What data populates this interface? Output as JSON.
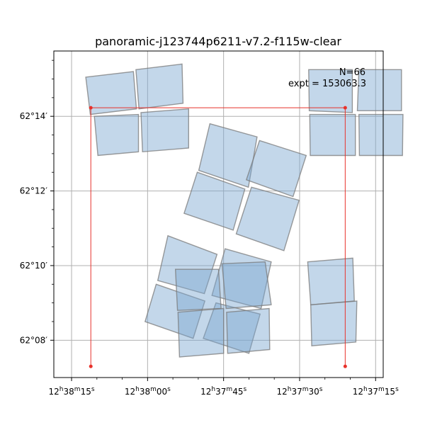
{
  "chart_data": {
    "type": "scatter",
    "title": "panoramic-j123744p6211-v7.2-f115w-clear",
    "annotations": {
      "n_text": "N=66",
      "expt_text": "expt = 153063.3"
    },
    "xaxis": {
      "unit": "RA_seconds_of_12h37m",
      "range": [
        78.5,
        13.5
      ],
      "ticks": [
        {
          "value": 75,
          "label_html": "12<tspan baseline-shift='super' font-size='9'>h</tspan>38<tspan baseline-shift='super' font-size='9'>m</tspan>15<tspan baseline-shift='super' font-size='9'>s</tspan>"
        },
        {
          "value": 60,
          "label_html": "12<tspan baseline-shift='super' font-size='9'>h</tspan>38<tspan baseline-shift='super' font-size='9'>m</tspan>00<tspan baseline-shift='super' font-size='9'>s</tspan>"
        },
        {
          "value": 45,
          "label_html": "12<tspan baseline-shift='super' font-size='9'>h</tspan>37<tspan baseline-shift='super' font-size='9'>m</tspan>45<tspan baseline-shift='super' font-size='9'>s</tspan>"
        },
        {
          "value": 30,
          "label_html": "12<tspan baseline-shift='super' font-size='9'>h</tspan>37<tspan baseline-shift='super' font-size='9'>m</tspan>30<tspan baseline-shift='super' font-size='9'>s</tspan>"
        },
        {
          "value": 15,
          "label_html": "12<tspan baseline-shift='super' font-size='9'>h</tspan>37<tspan baseline-shift='super' font-size='9'>m</tspan>15<tspan baseline-shift='super' font-size='9'>s</tspan>"
        }
      ],
      "minor_ticks": [
        70,
        65,
        55,
        50,
        40,
        35,
        25,
        20
      ]
    },
    "yaxis": {
      "unit": "Dec_arcmin_above_62deg",
      "range": [
        7.0,
        15.75
      ],
      "ticks": [
        {
          "value": 8,
          "label": "62°08′"
        },
        {
          "value": 10,
          "label": "62°10′"
        },
        {
          "value": 12,
          "label": "62°12′"
        },
        {
          "value": 14,
          "label": "62°14′"
        }
      ],
      "minor_ticks": [
        8.5,
        9,
        9.5,
        10.5,
        11,
        11.5,
        12.5,
        13,
        13.5,
        14.5,
        15,
        15.5
      ]
    },
    "grid": true,
    "colors": {
      "footprint_fill": "#7ba6d0",
      "footprint_edge": "#7a7a7a",
      "box": "#e8322b"
    },
    "footprints": [
      [
        [
          72.2,
          15.05
        ],
        [
          62.8,
          15.2
        ],
        [
          62.2,
          14.2
        ],
        [
          71.3,
          14.05
        ]
      ],
      [
        [
          62.3,
          15.25
        ],
        [
          53.2,
          15.4
        ],
        [
          53.0,
          14.35
        ],
        [
          61.7,
          14.2
        ]
      ],
      [
        [
          70.5,
          14.0
        ],
        [
          61.8,
          14.05
        ],
        [
          61.8,
          13.05
        ],
        [
          69.8,
          12.95
        ]
      ],
      [
        [
          61.3,
          14.1
        ],
        [
          51.9,
          14.2
        ],
        [
          51.9,
          13.15
        ],
        [
          61.0,
          13.05
        ]
      ],
      [
        [
          28.2,
          15.25
        ],
        [
          19.6,
          15.25
        ],
        [
          19.6,
          14.1
        ],
        [
          28.1,
          14.15
        ]
      ],
      [
        [
          18.3,
          15.25
        ],
        [
          9.9,
          15.25
        ],
        [
          9.9,
          14.15
        ],
        [
          18.6,
          14.15
        ]
      ],
      [
        [
          28.0,
          14.05
        ],
        [
          19.0,
          14.05
        ],
        [
          19.0,
          12.95
        ],
        [
          27.9,
          12.95
        ]
      ],
      [
        [
          18.3,
          14.05
        ],
        [
          9.6,
          14.05
        ],
        [
          9.7,
          12.95
        ],
        [
          18.2,
          12.95
        ]
      ],
      [
        [
          47.7,
          13.8
        ],
        [
          38.4,
          13.45
        ],
        [
          40.1,
          12.1
        ],
        [
          49.9,
          12.55
        ]
      ],
      [
        [
          37.9,
          13.35
        ],
        [
          28.7,
          12.95
        ],
        [
          31.3,
          11.85
        ],
        [
          40.5,
          12.3
        ]
      ],
      [
        [
          50.2,
          12.5
        ],
        [
          40.8,
          12.05
        ],
        [
          43.1,
          10.95
        ],
        [
          52.8,
          11.4
        ]
      ],
      [
        [
          39.5,
          12.1
        ],
        [
          30.1,
          11.75
        ],
        [
          33.1,
          10.4
        ],
        [
          42.5,
          10.85
        ]
      ],
      [
        [
          56.0,
          10.8
        ],
        [
          46.3,
          10.3
        ],
        [
          48.8,
          9.25
        ],
        [
          58.0,
          9.6
        ]
      ],
      [
        [
          44.7,
          10.45
        ],
        [
          35.6,
          10.1
        ],
        [
          37.6,
          8.85
        ],
        [
          47.3,
          9.2
        ]
      ],
      [
        [
          58.3,
          9.5
        ],
        [
          48.7,
          9.05
        ],
        [
          51.0,
          8.05
        ],
        [
          60.5,
          8.5
        ]
      ],
      [
        [
          46.5,
          9.0
        ],
        [
          37.8,
          8.7
        ],
        [
          40.0,
          7.65
        ],
        [
          49.0,
          8.05
        ]
      ],
      [
        [
          54.5,
          9.9
        ],
        [
          46.0,
          9.9
        ],
        [
          45.5,
          8.85
        ],
        [
          54.1,
          8.8
        ]
      ],
      [
        [
          45.3,
          10.05
        ],
        [
          36.8,
          10.1
        ],
        [
          35.6,
          8.95
        ],
        [
          44.5,
          8.85
        ]
      ],
      [
        [
          54.0,
          8.75
        ],
        [
          45.0,
          8.85
        ],
        [
          45.0,
          7.65
        ],
        [
          53.7,
          7.55
        ]
      ],
      [
        [
          44.4,
          8.75
        ],
        [
          36.0,
          8.85
        ],
        [
          35.9,
          7.75
        ],
        [
          44.2,
          7.65
        ]
      ],
      [
        [
          28.4,
          10.1
        ],
        [
          19.5,
          10.2
        ],
        [
          19.2,
          9.05
        ],
        [
          27.8,
          8.95
        ]
      ],
      [
        [
          27.8,
          8.95
        ],
        [
          18.7,
          9.05
        ],
        [
          18.9,
          7.95
        ],
        [
          27.6,
          7.85
        ]
      ]
    ],
    "bounding_box": {
      "ra": [
        71.2,
        21.0
      ],
      "dec": [
        14.23,
        7.3
      ]
    }
  }
}
